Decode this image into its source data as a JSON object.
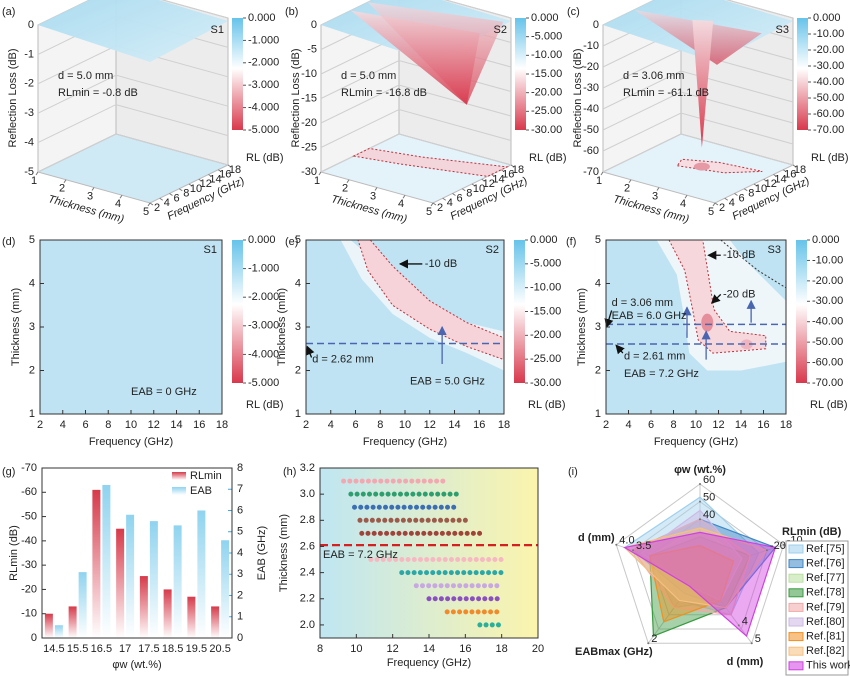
{
  "chart_data": [
    {
      "type": "surface3d",
      "label": "(a)",
      "sample": "S1",
      "annotations": [
        "d = 5.0 mm",
        "RLmin = -0.8 dB"
      ],
      "zlabel": "Reflection Loss (dB)",
      "xlabel": "Thickness (mm)",
      "ylabel": "Frequency (GHz)",
      "zlim": [
        -5,
        0
      ],
      "zticks": [
        0,
        -1,
        -2,
        -3,
        -4,
        -5
      ],
      "xlim": [
        1,
        5
      ],
      "xticks": [
        1,
        2,
        3,
        4,
        5
      ],
      "ylim": [
        2,
        18
      ],
      "yticks": [
        2,
        4,
        6,
        8,
        10,
        12,
        14,
        16,
        18
      ],
      "clim": [
        -5,
        0
      ],
      "cticks": [
        {
          "value": 0,
          "label": "0.000"
        },
        {
          "value": -1,
          "label": "-1.000"
        },
        {
          "value": -2,
          "label": "-2.000"
        },
        {
          "value": -3,
          "label": "-3.000"
        },
        {
          "value": -4,
          "label": "-4.000"
        },
        {
          "value": -5,
          "label": "-5.000"
        }
      ],
      "clabel": "RL (dB)"
    },
    {
      "type": "surface3d",
      "label": "(b)",
      "sample": "S2",
      "annotations": [
        "d = 5.0 mm",
        "RLmin = -16.8 dB"
      ],
      "zlabel": "Reflection Loss (dB)",
      "xlabel": "Thickness (mm)",
      "ylabel": "Frequency (GHz)",
      "zlim": [
        -30,
        0
      ],
      "zticks": [
        0,
        -5,
        -10,
        -15,
        -20,
        -25,
        -30
      ],
      "xlim": [
        1,
        5
      ],
      "xticks": [
        1,
        2,
        3,
        4,
        5
      ],
      "ylim": [
        2,
        18
      ],
      "yticks": [
        2,
        4,
        6,
        8,
        10,
        12,
        14,
        16,
        18
      ],
      "clim": [
        -30,
        0
      ],
      "cticks": [
        {
          "value": 0,
          "label": "0.000"
        },
        {
          "value": -5,
          "label": "-5.000"
        },
        {
          "value": -10,
          "label": "-10.00"
        },
        {
          "value": -15,
          "label": "-15.00"
        },
        {
          "value": -20,
          "label": "-20.00"
        },
        {
          "value": -25,
          "label": "-25.00"
        },
        {
          "value": -30,
          "label": "-30.00"
        }
      ],
      "clabel": "RL (dB)"
    },
    {
      "type": "surface3d",
      "label": "(c)",
      "sample": "S3",
      "annotations": [
        "d = 3.06 mm",
        "RLmin = -61.1 dB"
      ],
      "zlabel": "Reflection Loss (dB)",
      "xlabel": "Thickness (mm)",
      "ylabel": "Frequency (GHz)",
      "zlim": [
        -70,
        0
      ],
      "zticks": [
        0,
        -10,
        -20,
        -30,
        -40,
        -50,
        -60,
        -70
      ],
      "xlim": [
        1,
        5
      ],
      "xticks": [
        1,
        2,
        3,
        4,
        5
      ],
      "ylim": [
        2,
        18
      ],
      "yticks": [
        2,
        4,
        6,
        8,
        10,
        12,
        14,
        16,
        18
      ],
      "clim": [
        -70,
        0
      ],
      "cticks": [
        {
          "value": 0,
          "label": "0.000"
        },
        {
          "value": -10,
          "label": "-10.00"
        },
        {
          "value": -20,
          "label": "-20.00"
        },
        {
          "value": -30,
          "label": "-30.00"
        },
        {
          "value": -40,
          "label": "-40.00"
        },
        {
          "value": -50,
          "label": "-50.00"
        },
        {
          "value": -60,
          "label": "-60.00"
        },
        {
          "value": -70,
          "label": "-70.00"
        }
      ],
      "clabel": "RL (dB)"
    },
    {
      "type": "contour",
      "label": "(d)",
      "sample": "S1",
      "xlabel": "Frequency (GHz)",
      "ylabel": "Thickness (mm)",
      "xlim": [
        2,
        18
      ],
      "xticks": [
        2,
        4,
        6,
        8,
        10,
        12,
        14,
        16,
        18
      ],
      "ylim": [
        1,
        5
      ],
      "yticks": [
        1,
        2,
        3,
        4,
        5
      ],
      "clim": [
        -5,
        0
      ],
      "cticks": [
        {
          "value": 0,
          "label": "0.000"
        },
        {
          "value": -1,
          "label": "-1.000"
        },
        {
          "value": -2,
          "label": "-2.000"
        },
        {
          "value": -3,
          "label": "-3.000"
        },
        {
          "value": -4,
          "label": "-4.000"
        },
        {
          "value": -5,
          "label": "-5.000"
        }
      ],
      "clabel": "RL (dB)",
      "annotations": [
        "EAB = 0 GHz"
      ]
    },
    {
      "type": "contour",
      "label": "(e)",
      "sample": "S2",
      "xlabel": "Frequency (GHz)",
      "ylabel": "Thickness (mm)",
      "xlim": [
        2,
        18
      ],
      "xticks": [
        2,
        4,
        6,
        8,
        10,
        12,
        14,
        16,
        18
      ],
      "ylim": [
        1,
        5
      ],
      "yticks": [
        1,
        2,
        3,
        4,
        5
      ],
      "clim": [
        -30,
        0
      ],
      "cticks": [
        {
          "value": 0,
          "label": "0.000"
        },
        {
          "value": -5,
          "label": "-5.000"
        },
        {
          "value": -10,
          "label": "-10.00"
        },
        {
          "value": -15,
          "label": "-15.00"
        },
        {
          "value": -20,
          "label": "-20.00"
        },
        {
          "value": -25,
          "label": "-25.00"
        },
        {
          "value": -30,
          "label": "-30.00"
        }
      ],
      "clabel": "RL (dB)",
      "hlines": [
        2.62
      ],
      "annotations": [
        "-10 dB",
        "d = 2.62 mm",
        "EAB = 5.0 GHz"
      ]
    },
    {
      "type": "contour",
      "label": "(f)",
      "sample": "S3",
      "xlabel": "Frequency (GHz)",
      "ylabel": "Thickness (mm)",
      "xlim": [
        2,
        18
      ],
      "xticks": [
        2,
        4,
        6,
        8,
        10,
        12,
        14,
        16,
        18
      ],
      "ylim": [
        1,
        5
      ],
      "yticks": [
        1,
        2,
        3,
        4,
        5
      ],
      "clim": [
        -70,
        0
      ],
      "cticks": [
        {
          "value": 0,
          "label": "0.000"
        },
        {
          "value": -10,
          "label": "-10.00"
        },
        {
          "value": -20,
          "label": "-20.00"
        },
        {
          "value": -30,
          "label": "-30.00"
        },
        {
          "value": -40,
          "label": "-40.00"
        },
        {
          "value": -50,
          "label": "-50.00"
        },
        {
          "value": -60,
          "label": "-60.00"
        },
        {
          "value": -70,
          "label": "-70.00"
        }
      ],
      "clabel": "RL (dB)",
      "hlines": [
        3.06,
        2.61
      ],
      "annotations": [
        "-10 dB",
        "-20 dB",
        "d = 3.06 mm",
        "EAB = 6.0 GHz",
        "d = 2.61 mm",
        "EAB = 7.2 GHz"
      ]
    },
    {
      "type": "bar",
      "label": "(g)",
      "xlabel": "φw (wt.%)",
      "ylabel": "RLmin (dB)",
      "y2label": "EAB (GHz)",
      "categories": [
        "14.5",
        "15.5",
        "16.5",
        "17",
        "17.5",
        "18.5",
        "19.5",
        "20.5"
      ],
      "series": [
        {
          "name": "RLmin",
          "color": "#d63a4a",
          "values": [
            -10,
            -13,
            -61,
            -45,
            -25.5,
            -20,
            -17,
            -13
          ]
        },
        {
          "name": "EAB",
          "color": "#8fd3ef",
          "axis": "y2",
          "values": [
            0.6,
            3.1,
            7.2,
            5.8,
            5.5,
            5.3,
            6.0,
            4.6
          ]
        }
      ],
      "ylim": [
        0,
        -70
      ],
      "yticks": [
        0,
        -10,
        -20,
        -30,
        -40,
        -50,
        -60,
        -70
      ],
      "y2lim": [
        0,
        8
      ],
      "y2ticks": [
        0,
        1,
        2,
        3,
        4,
        5,
        6,
        7,
        8
      ]
    },
    {
      "type": "range",
      "label": "(h)",
      "xlabel": "Frequency (GHz)",
      "ylabel": "Thickness (mm)",
      "xlim": [
        8,
        20
      ],
      "xticks": [
        8,
        10,
        12,
        14,
        16,
        18,
        20
      ],
      "ylim": [
        1.9,
        3.2
      ],
      "yticks": [
        {
          "value": 2,
          "label": "2.0"
        },
        2.2,
        2.4,
        2.6,
        2.8,
        {
          "value": 3,
          "label": "3.0"
        },
        3.2
      ],
      "ranges": [
        {
          "y": 3.1,
          "x": [
            9.3,
            15.0
          ],
          "color": "#f4a7b0"
        },
        {
          "y": 3.0,
          "x": [
            9.7,
            15.8
          ],
          "color": "#2e9e6e"
        },
        {
          "y": 2.9,
          "x": [
            9.9,
            15.6
          ],
          "color": "#3a6fb5"
        },
        {
          "y": 2.8,
          "x": [
            10.2,
            16.2
          ],
          "color": "#9b5a4a"
        },
        {
          "y": 2.7,
          "x": [
            10.3,
            16.8
          ],
          "color": "#a0443a"
        },
        {
          "y": 2.5,
          "x": [
            10.8,
            18.0
          ],
          "color": "#f8b8c2"
        },
        {
          "y": 2.4,
          "x": [
            12.5,
            18.0
          ],
          "color": "#2aa8a8"
        },
        {
          "y": 2.3,
          "x": [
            13.3,
            18.0
          ],
          "color": "#c7a8e0"
        },
        {
          "y": 2.2,
          "x": [
            14.0,
            18.0
          ],
          "color": "#8a4fc0"
        },
        {
          "y": 2.1,
          "x": [
            15.0,
            18.0
          ],
          "color": "#f08a2a"
        },
        {
          "y": 2.0,
          "x": [
            16.8,
            18.0
          ],
          "color": "#2ab09a"
        }
      ],
      "hlines": [
        2.61
      ],
      "annotations": [
        "EAB = 7.2 GHz"
      ]
    },
    {
      "type": "radar",
      "label": "(i)",
      "axes": [
        {
          "name": "φw (wt.%)",
          "lim": [
            10,
            60
          ],
          "ticks": [
            40,
            50,
            60
          ]
        },
        {
          "name": "RLmin (dB)",
          "lim": [
            -60,
            -10
          ],
          "ticks": [
            -20,
            -10
          ]
        },
        {
          "name": "d (mm)",
          "lim": [
            1,
            5
          ],
          "ticks": [
            4,
            5
          ]
        },
        {
          "name": "EABmax (GHz)",
          "lim": [
            8,
            2
          ],
          "ticks": [
            2
          ]
        },
        {
          "name": "d (mm)",
          "lim": [
            1.5,
            4.0
          ],
          "ticks": [
            3.5,
            {
              "value": 4,
              "label": "4.0"
            }
          ]
        }
      ],
      "series": [
        {
          "name": "Ref.[75]",
          "color": "#9fd0ec",
          "values": [
            52.5,
            -25,
            3.4,
            5.6,
            3.75
          ]
        },
        {
          "name": "Ref.[76]",
          "color": "#3d86c6",
          "values": [
            40,
            -15,
            3.0,
            6.2,
            3.5
          ]
        },
        {
          "name": "Ref.[77]",
          "color": "#b8e0a0",
          "values": [
            35,
            -35,
            2.6,
            5.0,
            3.0
          ]
        },
        {
          "name": "Ref.[78]",
          "color": "#3a9a40",
          "values": [
            30,
            -30,
            3.0,
            2.6,
            3.0
          ]
        },
        {
          "name": "Ref.[79]",
          "color": "#f2a8a8",
          "values": [
            40,
            -30,
            3.4,
            5.0,
            3.5
          ]
        },
        {
          "name": "Ref.[80]",
          "color": "#cdb8e4",
          "values": [
            45,
            -35,
            2.6,
            6.8,
            3.25
          ]
        },
        {
          "name": "Ref.[81]",
          "color": "#f09020",
          "values": [
            25,
            -40,
            2.6,
            3.8,
            3.0
          ]
        },
        {
          "name": "Ref.[82]",
          "color": "#f6c080",
          "values": [
            35,
            -20,
            3.0,
            5.6,
            3.75
          ]
        },
        {
          "name": "This work",
          "color": "#d040e0",
          "values": [
            32.5,
            -15,
            4.6,
            6.8,
            3.75
          ]
        }
      ]
    }
  ]
}
